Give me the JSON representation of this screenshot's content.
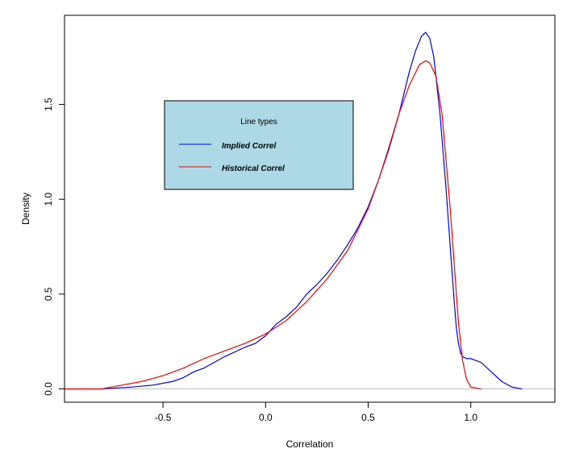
{
  "chart_data": {
    "type": "line",
    "title": "",
    "xlabel": "Correlation",
    "ylabel": "Density",
    "xlim": [
      -0.98,
      1.41
    ],
    "ylim": [
      -0.07,
      1.97
    ],
    "x_ticks": [
      -0.5,
      0.0,
      0.5,
      1.0
    ],
    "x_tick_labels": [
      "-0.5",
      "0.0",
      "0.5",
      "1.0"
    ],
    "y_ticks": [
      0.0,
      0.5,
      1.0,
      1.5
    ],
    "y_tick_labels": [
      "0.0",
      "0.5",
      "1.0",
      "1.5"
    ],
    "baseline": 0,
    "grid": false,
    "legend": {
      "title": "Line types",
      "placement": "top-left",
      "background": "#add8e6",
      "entries": [
        "Implied Correl",
        "Historical Correl"
      ]
    },
    "series": [
      {
        "name": "Implied Correl",
        "color": "#0000ff",
        "x": [
          -0.8,
          -0.65,
          -0.55,
          -0.45,
          -0.4,
          -0.35,
          -0.3,
          -0.2,
          -0.1,
          -0.05,
          0.0,
          0.05,
          0.1,
          0.15,
          0.2,
          0.25,
          0.3,
          0.35,
          0.4,
          0.45,
          0.5,
          0.55,
          0.6,
          0.65,
          0.7,
          0.73,
          0.76,
          0.78,
          0.8,
          0.82,
          0.85,
          0.88,
          0.9,
          0.92,
          0.93,
          0.94,
          0.95,
          0.96,
          0.98,
          1.0,
          1.05,
          1.1,
          1.15,
          1.2,
          1.25
        ],
        "y": [
          0.0,
          0.01,
          0.02,
          0.04,
          0.06,
          0.09,
          0.11,
          0.17,
          0.22,
          0.24,
          0.28,
          0.34,
          0.38,
          0.43,
          0.5,
          0.55,
          0.61,
          0.68,
          0.76,
          0.85,
          0.96,
          1.1,
          1.26,
          1.45,
          1.67,
          1.78,
          1.86,
          1.88,
          1.85,
          1.75,
          1.45,
          1.05,
          0.75,
          0.45,
          0.32,
          0.24,
          0.19,
          0.17,
          0.16,
          0.16,
          0.14,
          0.09,
          0.04,
          0.01,
          0.0
        ]
      },
      {
        "name": "Historical Correl",
        "color": "#ff0000",
        "x": [
          -0.98,
          -0.9,
          -0.8,
          -0.7,
          -0.6,
          -0.5,
          -0.4,
          -0.3,
          -0.2,
          -0.1,
          0.0,
          0.1,
          0.2,
          0.3,
          0.4,
          0.5,
          0.55,
          0.6,
          0.65,
          0.7,
          0.75,
          0.78,
          0.8,
          0.83,
          0.86,
          0.88,
          0.9,
          0.92,
          0.94,
          0.96,
          0.98,
          1.0,
          1.05
        ],
        "y": [
          0.0,
          0.0,
          0.0,
          0.02,
          0.04,
          0.07,
          0.11,
          0.16,
          0.2,
          0.24,
          0.29,
          0.36,
          0.46,
          0.58,
          0.73,
          0.95,
          1.1,
          1.27,
          1.45,
          1.6,
          1.71,
          1.73,
          1.72,
          1.65,
          1.45,
          1.2,
          0.95,
          0.65,
          0.35,
          0.15,
          0.05,
          0.01,
          0.0
        ]
      }
    ]
  }
}
